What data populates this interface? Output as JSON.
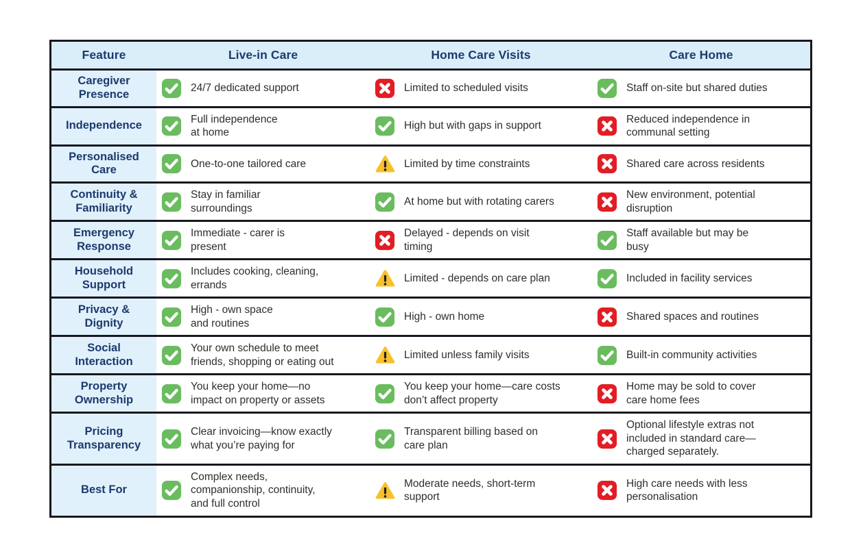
{
  "table": {
    "headers": [
      {
        "label": "Feature"
      },
      {
        "label": "Live-in Care"
      },
      {
        "label": "Home Care Visits"
      },
      {
        "label": "Care Home"
      }
    ],
    "rows": [
      {
        "feature": "Caregiver\nPresence",
        "cells": [
          {
            "icon": "check",
            "text": "24/7 dedicated support"
          },
          {
            "icon": "cross",
            "text": "Limited to scheduled visits"
          },
          {
            "icon": "check",
            "text": "Staff on-site but shared duties"
          }
        ]
      },
      {
        "feature": "Independence",
        "cells": [
          {
            "icon": "check",
            "text": "Full independence\nat home"
          },
          {
            "icon": "check",
            "text": "High but with gaps in support"
          },
          {
            "icon": "cross",
            "text": "Reduced independence in\ncommunal setting"
          }
        ]
      },
      {
        "feature": "Personalised\nCare",
        "cells": [
          {
            "icon": "check",
            "text": "One-to-one tailored care"
          },
          {
            "icon": "warning",
            "text": "Limited by time constraints"
          },
          {
            "icon": "cross",
            "text": "Shared care across residents"
          }
        ]
      },
      {
        "feature": "Continuity &\nFamiliarity",
        "cells": [
          {
            "icon": "check",
            "text": "Stay in familiar\nsurroundings"
          },
          {
            "icon": "check",
            "text": "At home but with rotating carers"
          },
          {
            "icon": "cross",
            "text": "New environment, potential\ndisruption"
          }
        ]
      },
      {
        "feature": "Emergency\nResponse",
        "cells": [
          {
            "icon": "check",
            "text": "Immediate - carer is\npresent"
          },
          {
            "icon": "cross",
            "text": "Delayed - depends on visit\ntiming"
          },
          {
            "icon": "check",
            "text": "Staff available but may be\nbusy"
          }
        ]
      },
      {
        "feature": "Household\nSupport",
        "cells": [
          {
            "icon": "check",
            "text": "Includes cooking, cleaning,\nerrands"
          },
          {
            "icon": "warning",
            "text": "Limited - depends on care plan"
          },
          {
            "icon": "check",
            "text": "Included in facility services"
          }
        ]
      },
      {
        "feature": "Privacy &\nDignity",
        "cells": [
          {
            "icon": "check",
            "text": "High - own space\nand routines"
          },
          {
            "icon": "check",
            "text": "High - own home"
          },
          {
            "icon": "cross",
            "text": "Shared spaces and routines"
          }
        ]
      },
      {
        "feature": "Social\nInteraction",
        "cells": [
          {
            "icon": "check",
            "text": "Your own schedule to meet\nfriends, shopping or eating out"
          },
          {
            "icon": "warning",
            "text": "Limited unless family visits"
          },
          {
            "icon": "check",
            "text": "Built-in community activities"
          }
        ]
      },
      {
        "feature": "Property\nOwnership",
        "cells": [
          {
            "icon": "check",
            "text": "You keep your home—no\nimpact on property or assets"
          },
          {
            "icon": "check",
            "text": "You keep your home—care costs\ndon’t affect property"
          },
          {
            "icon": "cross",
            "text": "Home may be sold to cover\ncare home fees"
          }
        ]
      },
      {
        "feature": "Pricing\nTransparency",
        "cells": [
          {
            "icon": "check",
            "text": "Clear invoicing—know exactly\nwhat you’re paying for"
          },
          {
            "icon": "check",
            "text": "Transparent billing based on\ncare plan"
          },
          {
            "icon": "cross",
            "text": "Optional lifestyle extras not\nincluded in standard care—\ncharged separately."
          }
        ]
      },
      {
        "feature": "Best For",
        "cells": [
          {
            "icon": "check",
            "text": "Complex needs,\ncompanionship, continuity,\nand full control"
          },
          {
            "icon": "warning",
            "text": "Moderate needs, short-term\nsupport"
          },
          {
            "icon": "cross",
            "text": "High care needs with less\npersonalisation"
          }
        ]
      }
    ]
  },
  "colors": {
    "check_green": "#6abc5f",
    "cross_red": "#e21d25",
    "warning_yellow": "#f8c12c",
    "warning_mark": "#222222",
    "header_blue": "#daeefa",
    "feature_blue": "#e0f1fb",
    "navy_text": "#1d3a6e",
    "border_dark": "#17171f",
    "body_text": "#2e2e2e"
  }
}
